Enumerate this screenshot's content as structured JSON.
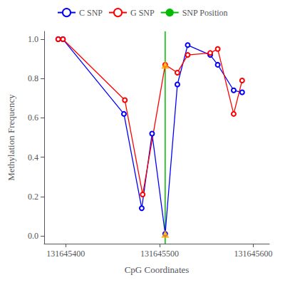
{
  "chart_data": {
    "type": "line",
    "xlabel": "CpG Coordinates",
    "ylabel": "Methylation Frequency",
    "xlim": [
      131645377,
      131645617
    ],
    "ylim": [
      -0.04,
      1.04
    ],
    "xticks": [
      131645400,
      131645500,
      131645600
    ],
    "yticks": [
      {
        "value": 0,
        "label": "0.0"
      },
      0.2,
      0.4,
      0.6,
      0.8,
      {
        "value": 1,
        "label": "1.0"
      }
    ],
    "grid": false,
    "legend": "top",
    "series": [
      {
        "name": "C SNP",
        "type": "line",
        "color": "#0000FF",
        "marker": "circle",
        "x": [
          131645392,
          131645397,
          131645462,
          131645481,
          131645492,
          131645506,
          131645519,
          131645530,
          131645554,
          131645562,
          131645579,
          131645588
        ],
        "values": [
          1.0,
          1.0,
          0.62,
          0.14,
          0.52,
          0.01,
          0.77,
          0.97,
          0.92,
          0.87,
          0.74,
          0.73
        ]
      },
      {
        "name": "G SNP",
        "type": "line",
        "color": "#FF0000",
        "marker": "circle",
        "x": [
          131645392,
          131645397,
          131645463,
          131645482,
          131645506,
          131645519,
          131645530,
          131645554,
          131645562,
          131645579,
          131645588
        ],
        "values": [
          1.0,
          1.0,
          0.69,
          0.21,
          0.87,
          0.83,
          0.92,
          0.93,
          0.95,
          0.62,
          0.79
        ]
      },
      {
        "name": "SNP Position",
        "type": "vline",
        "color": "#00BB00",
        "x": [
          131645506
        ]
      },
      {
        "type": "scatter",
        "marker": "triangle",
        "color": "#FFA500",
        "x": [
          131645506,
          131645506
        ],
        "values": [
          0.01,
          0.87
        ]
      }
    ]
  }
}
